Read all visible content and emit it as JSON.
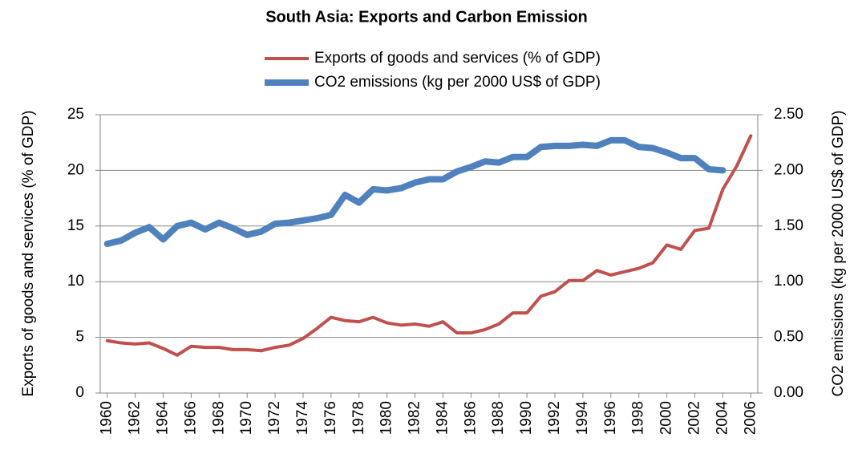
{
  "chart_data": {
    "type": "line",
    "title": "South Asia: Exports and Carbon Emission",
    "y_label": "Exports of goods and services (% of GDP)",
    "y2_label": "CO2 emissions (kg per 2000 US$ of GDP)",
    "x": [
      1960,
      1961,
      1962,
      1963,
      1964,
      1965,
      1966,
      1967,
      1968,
      1969,
      1970,
      1971,
      1972,
      1973,
      1974,
      1975,
      1976,
      1977,
      1978,
      1979,
      1980,
      1981,
      1982,
      1983,
      1984,
      1985,
      1986,
      1987,
      1988,
      1989,
      1990,
      1991,
      1992,
      1993,
      1994,
      1995,
      1996,
      1997,
      1998,
      1999,
      2000,
      2001,
      2002,
      2003,
      2004,
      2005,
      2006
    ],
    "series": [
      {
        "name": "Exports of goods and services (% of GDP)",
        "color": "#c0504d",
        "width": 4,
        "values": [
          4.7,
          4.5,
          4.4,
          4.5,
          4.0,
          3.4,
          4.2,
          4.1,
          4.1,
          3.9,
          3.9,
          3.8,
          4.1,
          4.3,
          4.9,
          5.8,
          6.8,
          6.5,
          6.4,
          6.8,
          6.3,
          6.1,
          6.2,
          6.0,
          6.4,
          5.4,
          5.4,
          5.7,
          6.2,
          7.2,
          7.2,
          8.7,
          9.1,
          10.1,
          10.1,
          11.0,
          10.6,
          10.9,
          11.2,
          11.7,
          13.3,
          12.9,
          14.6,
          14.8,
          18.3,
          20.4,
          23.1
        ]
      },
      {
        "name": "CO2 emissions (kg per 2000 US$ of GDP)",
        "color": "#4f81bd",
        "width": 8,
        "axis": "y2",
        "values": [
          1.34,
          1.37,
          1.44,
          1.49,
          1.38,
          1.5,
          1.53,
          1.47,
          1.53,
          1.48,
          1.42,
          1.45,
          1.52,
          1.53,
          1.55,
          1.57,
          1.6,
          1.78,
          1.71,
          1.83,
          1.82,
          1.84,
          1.89,
          1.92,
          1.92,
          1.99,
          2.03,
          2.08,
          2.07,
          2.12,
          2.12,
          2.21,
          2.22,
          2.22,
          2.23,
          2.22,
          2.27,
          2.27,
          2.21,
          2.2,
          2.16,
          2.11,
          2.11,
          2.01,
          2.0,
          null,
          null
        ]
      }
    ],
    "xlim": [
      1959.5,
      2006.5
    ],
    "xticks": [
      1960,
      1962,
      1964,
      1966,
      1968,
      1970,
      1972,
      1974,
      1976,
      1978,
      1980,
      1982,
      1984,
      1986,
      1988,
      1990,
      1992,
      1994,
      1996,
      1998,
      2000,
      2002,
      2004,
      2006
    ],
    "ylim": [
      0,
      25
    ],
    "yticks": [
      0,
      5,
      10,
      15,
      20,
      25
    ],
    "y2lim": [
      0,
      2.5
    ],
    "y2ticks": [
      {
        "value": 0,
        "label": "0.00"
      },
      {
        "value": 0.5,
        "label": "0.50"
      },
      {
        "value": 1,
        "label": "1.00"
      },
      {
        "value": 1.5,
        "label": "1.50"
      },
      {
        "value": 2,
        "label": "2.00"
      },
      {
        "value": 2.5,
        "label": "2.50"
      }
    ],
    "grid": true,
    "legend": "top"
  }
}
